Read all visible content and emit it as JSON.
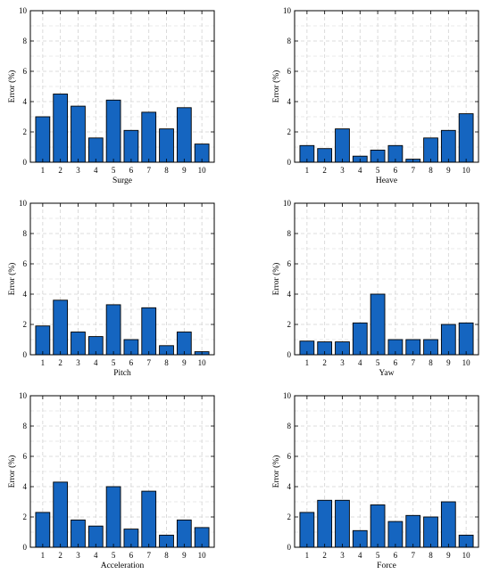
{
  "style": {
    "bar_color": "#1565c0",
    "bar_edge": "#000000",
    "grid_color": "#d2d2d2",
    "axis_color": "#000000"
  },
  "chart_data": [
    {
      "type": "bar",
      "categories": [
        "1",
        "2",
        "3",
        "4",
        "5",
        "6",
        "7",
        "8",
        "9",
        "10"
      ],
      "values": [
        3.0,
        4.5,
        3.7,
        1.6,
        4.1,
        2.1,
        3.3,
        2.2,
        3.6,
        1.2
      ],
      "xlabel": "Surge",
      "ylabel": "Error (%)",
      "ylim": [
        0,
        10
      ],
      "yticks": [
        0,
        2,
        4,
        6,
        8,
        10
      ],
      "grid": true
    },
    {
      "type": "bar",
      "categories": [
        "1",
        "2",
        "3",
        "4",
        "5",
        "6",
        "7",
        "8",
        "9",
        "10"
      ],
      "values": [
        1.1,
        0.9,
        2.2,
        0.4,
        0.8,
        1.1,
        0.2,
        1.6,
        2.1,
        3.2
      ],
      "xlabel": "Heave",
      "ylabel": "Error (%)",
      "ylim": [
        0,
        10
      ],
      "yticks": [
        0,
        2,
        4,
        6,
        8,
        10
      ],
      "grid": true
    },
    {
      "type": "bar",
      "categories": [
        "1",
        "2",
        "3",
        "4",
        "5",
        "6",
        "7",
        "8",
        "9",
        "10"
      ],
      "values": [
        1.9,
        3.6,
        1.5,
        1.2,
        3.3,
        1.0,
        3.1,
        0.6,
        1.5,
        0.2
      ],
      "xlabel": "Pitch",
      "ylabel": "Error (%)",
      "ylim": [
        0,
        10
      ],
      "yticks": [
        0,
        2,
        4,
        6,
        8,
        10
      ],
      "grid": true
    },
    {
      "type": "bar",
      "categories": [
        "1",
        "2",
        "3",
        "4",
        "5",
        "6",
        "7",
        "8",
        "9",
        "10"
      ],
      "values": [
        0.9,
        0.85,
        0.85,
        2.1,
        4.0,
        1.0,
        1.0,
        1.0,
        2.0,
        2.1
      ],
      "xlabel": "Yaw",
      "ylabel": "Error (%)",
      "ylim": [
        0,
        10
      ],
      "yticks": [
        0,
        2,
        4,
        6,
        8,
        10
      ],
      "grid": true
    },
    {
      "type": "bar",
      "categories": [
        "1",
        "2",
        "3",
        "4",
        "5",
        "6",
        "7",
        "8",
        "9",
        "10"
      ],
      "values": [
        2.3,
        4.3,
        1.8,
        1.4,
        4.0,
        1.2,
        3.7,
        0.8,
        1.8,
        1.3
      ],
      "xlabel": "Acceleration",
      "ylabel": "Error (%)",
      "ylim": [
        0,
        10
      ],
      "yticks": [
        0,
        2,
        4,
        6,
        8,
        10
      ],
      "grid": true
    },
    {
      "type": "bar",
      "categories": [
        "1",
        "2",
        "3",
        "4",
        "5",
        "6",
        "7",
        "8",
        "9",
        "10"
      ],
      "values": [
        2.3,
        3.1,
        3.1,
        1.1,
        2.8,
        1.7,
        2.1,
        2.0,
        3.0,
        0.8
      ],
      "xlabel": "Force",
      "ylabel": "Error (%)",
      "ylim": [
        0,
        10
      ],
      "yticks": [
        0,
        2,
        4,
        6,
        8,
        10
      ],
      "grid": true
    }
  ]
}
